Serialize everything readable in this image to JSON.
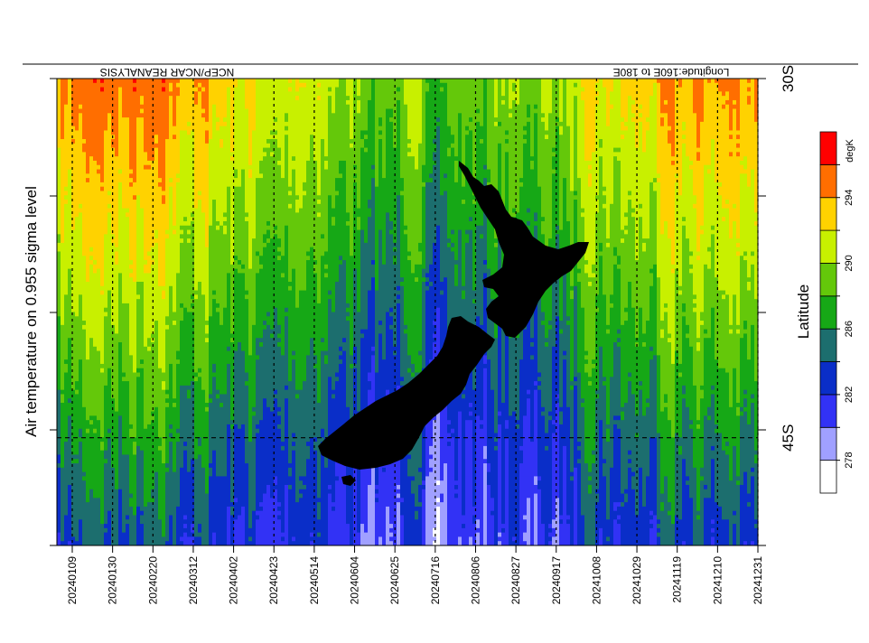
{
  "chart_data": {
    "type": "heatmap",
    "title": "",
    "top_left_label": "NCEP/NCAR REANALYSIS",
    "top_right_label": "Longitude:160E to 180E",
    "ylabel_left": "Air temperature on 0.955 sigma level",
    "ylabel_right": "Latitude",
    "x_tick_labels": [
      "20240109",
      "20240130",
      "20240220",
      "20240312",
      "20240402",
      "20240423",
      "20240514",
      "20240604",
      "20240625",
      "20240716",
      "20240806",
      "20240827",
      "20240917",
      "20241008",
      "20241029",
      "20241119",
      "20241210",
      "20241231"
    ],
    "x_range": [
      "20240101",
      "20241231"
    ],
    "y_tick_labels": [
      {
        "label": "30S",
        "lat": -30
      },
      {
        "label": "45S",
        "lat": -45
      }
    ],
    "y_range": [
      -49.5,
      -30
    ],
    "colorbar": {
      "unit": "degK",
      "levels": [
        278,
        280,
        282,
        284,
        286,
        288,
        290,
        292,
        294,
        296
      ],
      "labeled_levels": [
        "278",
        "282",
        "286",
        "290",
        "294"
      ],
      "colors": [
        "#ffffff",
        "#a0a0ff",
        "#3232f5",
        "#0a2ec8",
        "#1c6e6e",
        "#16a816",
        "#64c80a",
        "#c8f000",
        "#ffd200",
        "#ff6e00",
        "#ff0000"
      ]
    },
    "grid": "dotted vertical lines at x ticks; dashed horizontal line at 45S",
    "overlay": "New Zealand land mask (black)",
    "approx_temperature_by_latitude": [
      {
        "lat": -30,
        "winter": 289,
        "summer": 295
      },
      {
        "lat": -34,
        "winter": 287.5,
        "summer": 293
      },
      {
        "lat": -38,
        "winter": 285.5,
        "summer": 291
      },
      {
        "lat": -42,
        "winter": 283.5,
        "summer": 288.5
      },
      {
        "lat": -45,
        "winter": 282,
        "summer": 286.5
      },
      {
        "lat": -49.5,
        "winter": 280.5,
        "summer": 283.5
      }
    ]
  }
}
